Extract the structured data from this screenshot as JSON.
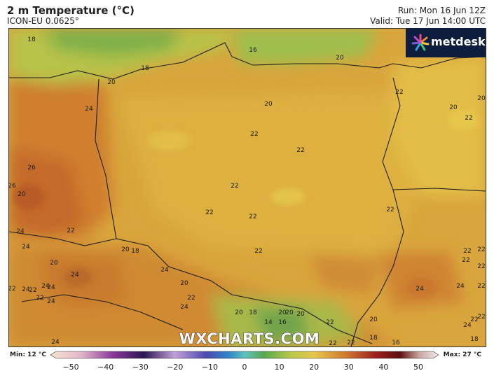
{
  "header": {
    "title": "2 m Temperature (°C)",
    "model": "ICON-EU 0.0625°",
    "run": "Run: Mon 16 Jun 12Z",
    "valid": "Valid: Tue 17 Jun 14:00 UTC"
  },
  "brand": {
    "logo_text": "metdesk",
    "watermark": "WXCHARTS.COM"
  },
  "legend": {
    "min_label": "Min: 12 °C",
    "max_label": "Max: 27 °C",
    "ticks": [
      "−50",
      "−40",
      "−30",
      "−20",
      "−10",
      "0",
      "10",
      "20",
      "30",
      "40",
      "50"
    ]
  },
  "map_labels": [
    "18",
    "16",
    "20",
    "18",
    "20",
    "24",
    "26",
    "26",
    "20",
    "22",
    "20",
    "22",
    "22",
    "22",
    "22",
    "22",
    "22",
    "22",
    "22",
    "24",
    "24",
    "24",
    "24",
    "24",
    "22",
    "20",
    "18",
    "20",
    "24",
    "24",
    "20",
    "22",
    "24",
    "24",
    "22",
    "22",
    "20",
    "20",
    "18",
    "14",
    "16",
    "20",
    "20",
    "22",
    "22",
    "24",
    "24",
    "18",
    "16",
    "20",
    "22",
    "22",
    "22",
    "22",
    "22",
    "24",
    "22",
    "22",
    "24",
    "22",
    "18",
    "20",
    "20",
    "22"
  ]
}
